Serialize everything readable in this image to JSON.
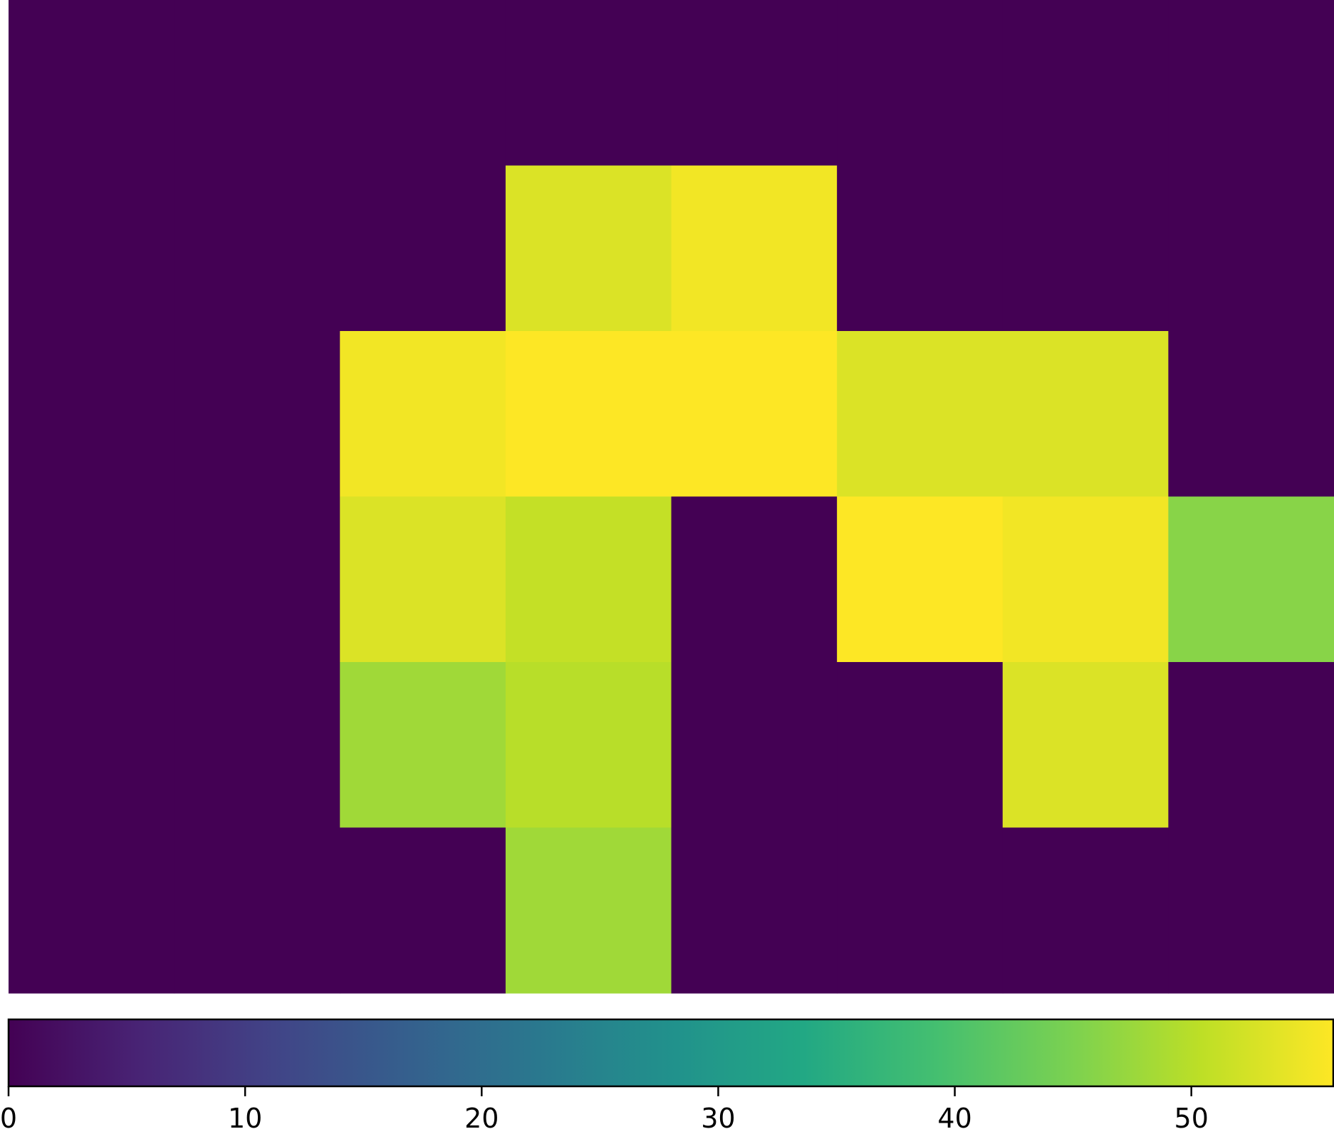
{
  "chart_data": {
    "type": "heatmap",
    "title": "",
    "xlabel": "",
    "ylabel": "",
    "rows": 6,
    "cols": 8,
    "values": [
      [
        0,
        0,
        0,
        0,
        0,
        0,
        0,
        0
      ],
      [
        0,
        0,
        0,
        53,
        55,
        0,
        0,
        0
      ],
      [
        0,
        0,
        55,
        57,
        57,
        53,
        53,
        0
      ],
      [
        0,
        0,
        53,
        51,
        0,
        57,
        55,
        46
      ],
      [
        0,
        0,
        48,
        50,
        0,
        0,
        53,
        0
      ],
      [
        0,
        0,
        0,
        48,
        0,
        0,
        0,
        0
      ]
    ],
    "colormap": "viridis",
    "vmin": 0,
    "vmax": 56,
    "grid": false,
    "colorbar": {
      "orientation": "horizontal",
      "placement": "bottom",
      "ticks": [
        0,
        10,
        20,
        30,
        40,
        50
      ],
      "tick_labels": [
        "0",
        "10",
        "20",
        "30",
        "40",
        "50"
      ]
    }
  }
}
